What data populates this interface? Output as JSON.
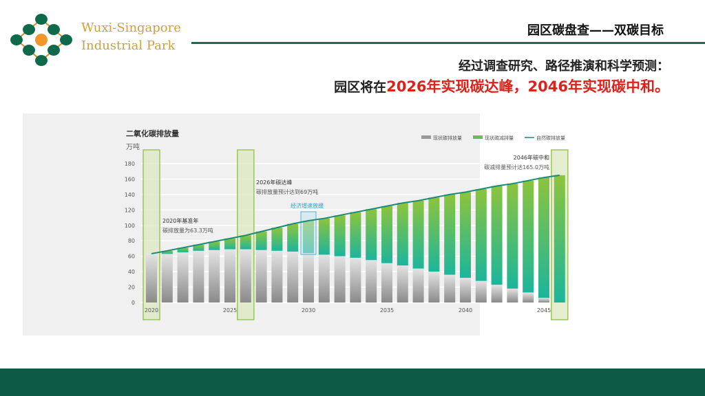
{
  "header": {
    "logo_text_line1": "Wuxi-Singapore",
    "logo_text_line2": "Industrial Park",
    "title": "园区碳盘查——双碳目标",
    "subtitle_line1": "经过调查研究、路径推演和科学预测：",
    "subtitle_line2_prefix": "园区将在",
    "subtitle_line2_highlight": "2026年实现碳达峰，2046年实现碳中和。"
  },
  "colors": {
    "accent_green": "#1b6b52",
    "highlight_red": "#e0201a",
    "emission_gray": "#9a9a9a",
    "reduction_green": "#5cb85c",
    "line_teal": "#1a8a7a"
  },
  "chart_data": {
    "type": "bar",
    "stacked": true,
    "title": "二氧化碳排放量",
    "ylabel": "万吨",
    "ylim": [
      0,
      180
    ],
    "yticks": [
      0,
      20,
      40,
      60,
      80,
      100,
      120,
      140,
      160,
      180
    ],
    "grid": true,
    "legend_position": "top-right",
    "categories": [
      2020,
      2021,
      2022,
      2023,
      2024,
      2025,
      2026,
      2027,
      2028,
      2029,
      2030,
      2031,
      2032,
      2033,
      2034,
      2035,
      2036,
      2037,
      2038,
      2039,
      2040,
      2041,
      2042,
      2043,
      2044,
      2045,
      2046
    ],
    "xtick_labels": [
      "2020",
      "2025",
      "2030",
      "2035",
      "2040",
      "2045"
    ],
    "series": [
      {
        "name": "现状碳排放量",
        "kind": "bar",
        "values": [
          63.3,
          63,
          65,
          67,
          68,
          69,
          69,
          68,
          67,
          66,
          64,
          62,
          60,
          58,
          55,
          51,
          48,
          44,
          40,
          36,
          32,
          28,
          23,
          18,
          13,
          6,
          0
        ]
      },
      {
        "name": "现状碳减排量",
        "kind": "bar",
        "values": [
          0,
          4,
          6,
          8,
          11,
          14,
          18,
          24,
          30,
          36,
          42,
          47,
          53,
          59,
          66,
          74,
          81,
          88,
          96,
          104,
          111,
          119,
          128,
          136,
          145,
          156,
          165
        ]
      },
      {
        "name": "自然碳排放量",
        "kind": "line",
        "values": [
          63.3,
          67,
          71,
          75,
          79,
          83,
          87,
          92,
          97,
          102,
          106,
          109,
          113,
          117,
          121,
          125,
          129,
          132,
          136,
          140,
          143,
          147,
          151,
          154,
          158,
          162,
          165
        ]
      }
    ],
    "annotations": [
      {
        "year": 2020,
        "title": "2020年基准年",
        "text": "碳排放量为63.3万吨"
      },
      {
        "year": 2026,
        "title": "2026年碳达峰",
        "text": "碳排放量预计达到69万吨"
      },
      {
        "year": 2030,
        "title": "经济增速放缓",
        "text": ""
      },
      {
        "year": 2046,
        "title": "2046年碳中和",
        "text": "碳减排量预计达165.0万吨"
      }
    ]
  }
}
